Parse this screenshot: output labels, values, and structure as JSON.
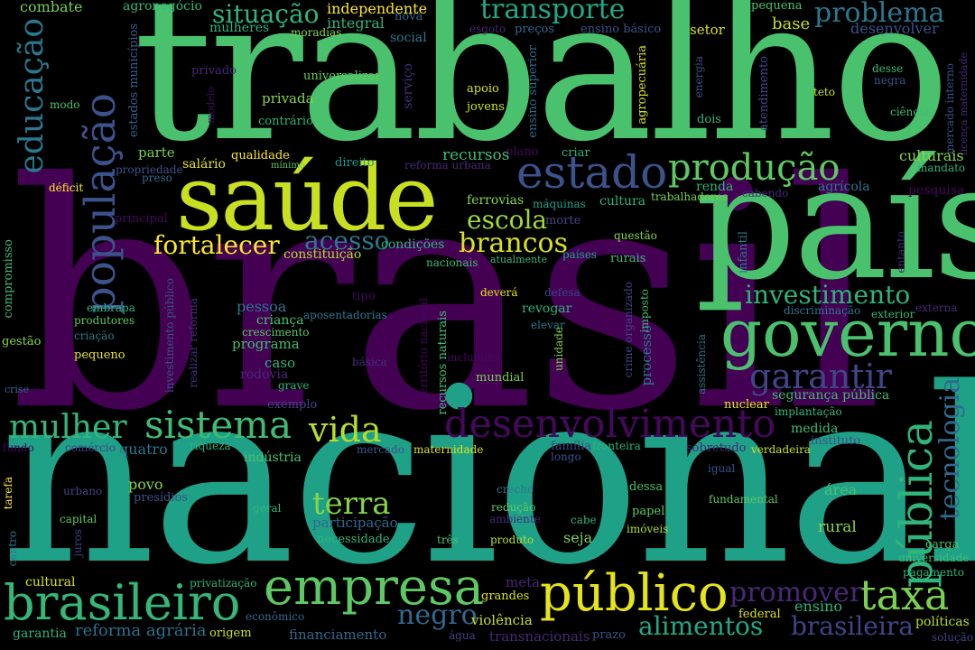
{
  "words": [
    {
      "id": "w_brasil",
      "text": "brasil",
      "color": "#440154"
    },
    {
      "id": "w_nacional",
      "text": "nacional",
      "color": "#1fa187"
    },
    {
      "id": "w_trabalho",
      "text": "trabalho",
      "color": "#4ac16d"
    },
    {
      "id": "w_pais",
      "text": "país",
      "color": "#4ac16d"
    },
    {
      "id": "w_saude",
      "text": "saúde",
      "color": "#c8e020"
    },
    {
      "id": "w_governo",
      "text": "governo",
      "color": "#4ac16d"
    },
    {
      "id": "w_estado",
      "text": "estado",
      "color": "#3b528b"
    },
    {
      "id": "w_publico",
      "text": "público",
      "color": "#e5e419"
    },
    {
      "id": "w_empresa",
      "text": "empresa",
      "color": "#5ec962"
    },
    {
      "id": "w_brasileiro",
      "text": "brasileiro",
      "color": "#35b779"
    },
    {
      "id": "w_desenvolvimento",
      "text": "desenvolvimento",
      "color": "#46085c"
    },
    {
      "id": "w_populacao",
      "text": "população",
      "color": "#3b528b"
    },
    {
      "id": "w_publica",
      "text": "pública",
      "color": "#2fb47c"
    },
    {
      "id": "w_producao",
      "text": "produção",
      "color": "#5ec962"
    },
    {
      "id": "w_sistema",
      "text": "sistema",
      "color": "#3fbc73"
    },
    {
      "id": "w_mulher",
      "text": "mulher",
      "color": "#35b779"
    },
    {
      "id": "w_educacao",
      "text": "educação",
      "color": "#2a788e"
    },
    {
      "id": "w_taxa",
      "text": "taxa",
      "color": "#7ad151"
    },
    {
      "id": "w_vida",
      "text": "vida",
      "color": "#b5de2b"
    },
    {
      "id": "w_garantir",
      "text": "garantir",
      "color": "#414487"
    },
    {
      "id": "w_promover",
      "text": "promover",
      "color": "#482878"
    },
    {
      "id": "w_negro",
      "text": "negro",
      "color": "#31688e"
    },
    {
      "id": "w_transporte",
      "text": "transporte",
      "color": "#22a884"
    },
    {
      "id": "w_situacao",
      "text": "situação",
      "color": "#2fb47c"
    },
    {
      "id": "w_problema",
      "text": "problema",
      "color": "#2a788e"
    },
    {
      "id": "w_fortalecer",
      "text": "fortalecer",
      "color": "#fde725"
    },
    {
      "id": "w_brancos",
      "text": "brancos",
      "color": "#d8e219"
    },
    {
      "id": "w_escola",
      "text": "escola",
      "color": "#a0da39"
    },
    {
      "id": "w_acesso",
      "text": "acesso",
      "color": "#2a788e"
    },
    {
      "id": "w_investimento",
      "text": "investimento",
      "color": "#2fb47c"
    },
    {
      "id": "w_tecnologia",
      "text": "tecnologia",
      "color": "#31688e"
    },
    {
      "id": "w_terra",
      "text": "terra",
      "color": "#86d549"
    },
    {
      "id": "w_alimentos",
      "text": "alimentos",
      "color": "#22a884"
    },
    {
      "id": "w_brasileira",
      "text": "brasileira",
      "color": "#414487"
    },
    {
      "id": "w_reforma_agraria",
      "text": "reforma agrária",
      "color": "#2c728e"
    },
    {
      "id": "w_combate",
      "text": "combate",
      "color": "#75d054"
    },
    {
      "id": "w_agronegocio",
      "text": "agronegócio",
      "color": "#35b779"
    },
    {
      "id": "w_independente",
      "text": "independente",
      "color": "#fde725"
    },
    {
      "id": "w_integral",
      "text": "integral",
      "color": "#2fb47c"
    },
    {
      "id": "w_nova",
      "text": "nova",
      "color": "#31688e"
    },
    {
      "id": "w_pequena",
      "text": "pequena",
      "color": "#4ac16d"
    },
    {
      "id": "w_base",
      "text": "base",
      "color": "#c8e020"
    },
    {
      "id": "w_desenvolver",
      "text": "desenvolver",
      "color": "#3b528b"
    },
    {
      "id": "w_setor",
      "text": "setor",
      "color": "#d8e219"
    },
    {
      "id": "w_mulheres",
      "text": "mulheres",
      "color": "#2fb47c"
    },
    {
      "id": "w_moradias",
      "text": "moradias",
      "color": "#86d549"
    },
    {
      "id": "w_esgoto",
      "text": "esgoto",
      "color": "#482878"
    },
    {
      "id": "w_precos",
      "text": "preços",
      "color": "#31688e"
    },
    {
      "id": "w_ensino_basico",
      "text": "ensino básico",
      "color": "#3b528b"
    },
    {
      "id": "w_social",
      "text": "social",
      "color": "#2a788e"
    },
    {
      "id": "w_estados_municipios",
      "text": "estados municípios",
      "color": "#35608d"
    },
    {
      "id": "w_universalizar",
      "text": "universalizar",
      "color": "#65cb5e"
    },
    {
      "id": "w_privado",
      "text": "privado",
      "color": "#482878"
    },
    {
      "id": "w_servico",
      "text": "serviço",
      "color": "#472f7d"
    },
    {
      "id": "w_ensino_superior",
      "text": "ensino superior",
      "color": "#31688e"
    },
    {
      "id": "w_agropecuaria",
      "text": "agropecuária",
      "color": "#d8e219"
    },
    {
      "id": "w_energia",
      "text": "energia",
      "color": "#3b528b"
    },
    {
      "id": "w_atendimento",
      "text": "atendimento",
      "color": "#414487"
    },
    {
      "id": "w_desse",
      "text": "desse",
      "color": "#3fbc73"
    },
    {
      "id": "w_negra",
      "text": "negra",
      "color": "#3b528b"
    },
    {
      "id": "w_mercado_interno",
      "text": "mercado interno",
      "color": "#3b528b"
    },
    {
      "id": "w_licenca_maternidade",
      "text": "licença maternidade",
      "color": "#482878"
    },
    {
      "id": "w_modo",
      "text": "modo",
      "color": "#4ac16d"
    },
    {
      "id": "w_modelo",
      "text": "modelo",
      "color": "#46085c"
    },
    {
      "id": "w_apoio",
      "text": "apoio",
      "color": "#d8e219"
    },
    {
      "id": "w_jovens",
      "text": "jovens",
      "color": "#c8e020"
    },
    {
      "id": "w_teto",
      "text": "teto",
      "color": "#c8e020"
    },
    {
      "id": "w_dois",
      "text": "dois",
      "color": "#2fb47c"
    },
    {
      "id": "w_ciencia",
      "text": "ciência",
      "color": "#3fbc73"
    },
    {
      "id": "w_privada",
      "text": "privada",
      "color": "#86d549"
    },
    {
      "id": "w_contrario",
      "text": "contrário",
      "color": "#2fb47c"
    },
    {
      "id": "w_plano",
      "text": "plano",
      "color": "#46085c"
    },
    {
      "id": "w_criar",
      "text": "criar",
      "color": "#2fb47c"
    },
    {
      "id": "w_parte",
      "text": "parte",
      "color": "#7ad151"
    },
    {
      "id": "w_recursos",
      "text": "recursos",
      "color": "#3fbc73"
    },
    {
      "id": "w_qualidade",
      "text": "qualidade",
      "color": "#fde725"
    },
    {
      "id": "w_salario",
      "text": "salário",
      "color": "#e5e419"
    },
    {
      "id": "w_minimo",
      "text": "mínimo",
      "color": "#5ec962"
    },
    {
      "id": "w_direito",
      "text": "direito",
      "color": "#1f9a8a"
    },
    {
      "id": "w_reforma_urbana",
      "text": "reforma urbana",
      "color": "#482878"
    },
    {
      "id": "w_culturais",
      "text": "culturais",
      "color": "#86d549"
    },
    {
      "id": "w_mandato",
      "text": "mandato",
      "color": "#2fb47c"
    },
    {
      "id": "w_propriedade",
      "text": "propriedade",
      "color": "#3b528b"
    },
    {
      "id": "w_preso",
      "text": "preso",
      "color": "#31688e"
    },
    {
      "id": "w_deficit",
      "text": "déficit",
      "color": "#fde725"
    },
    {
      "id": "w_renda",
      "text": "renda",
      "color": "#2fb47c"
    },
    {
      "id": "w_agricola",
      "text": "agrícola",
      "color": "#2a788e"
    },
    {
      "id": "w_cabendo",
      "text": "cabendo",
      "color": "#482878"
    },
    {
      "id": "w_pesquisa",
      "text": "pesquisa",
      "color": "#46085c"
    },
    {
      "id": "w_ferrovias",
      "text": "ferrovias",
      "color": "#86d549"
    },
    {
      "id": "w_maquinas",
      "text": "máquinas",
      "color": "#1fa187"
    },
    {
      "id": "w_cultura",
      "text": "cultura",
      "color": "#2fb47c"
    },
    {
      "id": "w_trabalhadores",
      "text": "trabalhadores",
      "color": "#7ad151"
    },
    {
      "id": "w_principal",
      "text": "principal",
      "color": "#46085c"
    },
    {
      "id": "w_morte",
      "text": "morte",
      "color": "#414487"
    },
    {
      "id": "w_infantil",
      "text": "infantil",
      "color": "#2a788e"
    },
    {
      "id": "w_entanto",
      "text": "entanto",
      "color": "#482878"
    },
    {
      "id": "w_condicoes",
      "text": "condições",
      "color": "#2fb47c"
    },
    {
      "id": "w_constituicao",
      "text": "constituição",
      "color": "#b5de2b"
    },
    {
      "id": "w_questao",
      "text": "questão",
      "color": "#86d549"
    },
    {
      "id": "w_paises",
      "text": "países",
      "color": "#1fa187"
    },
    {
      "id": "w_rurais",
      "text": "rurais",
      "color": "#3fbc73"
    },
    {
      "id": "w_compromisso",
      "text": "compromisso",
      "color": "#3fbc73"
    },
    {
      "id": "w_nacionais",
      "text": "nacionais",
      "color": "#3fbc73"
    },
    {
      "id": "w_atualmente",
      "text": "atualmente",
      "color": "#35b779"
    },
    {
      "id": "w_tipo",
      "text": "tipo",
      "color": "#46085c"
    },
    {
      "id": "w_devera",
      "text": "deverá",
      "color": "#e5e419"
    },
    {
      "id": "w_defesa",
      "text": "defesa",
      "color": "#414487"
    },
    {
      "id": "w_crime_organizado",
      "text": "crime organizado",
      "color": "#414487"
    },
    {
      "id": "w_imposto",
      "text": "imposto",
      "color": "#3fbc73"
    },
    {
      "id": "w_embrapa",
      "text": "embrapa",
      "color": "#2fb47c"
    },
    {
      "id": "w_produtores",
      "text": "produtores",
      "color": "#5ec962"
    },
    {
      "id": "w_investimento_publico",
      "text": "investimento público",
      "color": "#3b528b"
    },
    {
      "id": "w_realizar_reforma",
      "text": "realizar reforma",
      "color": "#472f7d"
    },
    {
      "id": "w_pessoa",
      "text": "pessoa",
      "color": "#2a788e"
    },
    {
      "id": "w_crianca",
      "text": "criança",
      "color": "#4ac16d"
    },
    {
      "id": "w_aposentadorias",
      "text": "aposentadorias",
      "color": "#2a788e"
    },
    {
      "id": "w_territorio_nacional",
      "text": "território nacional",
      "color": "#46085c"
    },
    {
      "id": "w_revogar",
      "text": "revogar",
      "color": "#2fb47c"
    },
    {
      "id": "w_elevar",
      "text": "elevar",
      "color": "#2a788e"
    },
    {
      "id": "w_discriminacao",
      "text": "discriminação",
      "color": "#2a788e"
    },
    {
      "id": "w_exterior",
      "text": "exterior",
      "color": "#35b779"
    },
    {
      "id": "w_externa",
      "text": "externa",
      "color": "#482878"
    },
    {
      "id": "w_gestao",
      "text": "gestão",
      "color": "#86d549"
    },
    {
      "id": "w_criacao",
      "text": "criação",
      "color": "#2a788e"
    },
    {
      "id": "w_crescimento",
      "text": "crescimento",
      "color": "#5ec962"
    },
    {
      "id": "w_programa",
      "text": "programa",
      "color": "#3fbc73"
    },
    {
      "id": "w_recursos_naturais",
      "text": "recursos naturais",
      "color": "#3fbc73"
    },
    {
      "id": "w_unidade",
      "text": "unidade",
      "color": "#86d549"
    },
    {
      "id": "w_processo",
      "text": "processo",
      "color": "#2a788e"
    },
    {
      "id": "w_assistencia",
      "text": "assistência",
      "color": "#2c728e"
    },
    {
      "id": "w_pequeno",
      "text": "pequeno",
      "color": "#e5e419"
    },
    {
      "id": "w_rodovia",
      "text": "rodovia",
      "color": "#482878"
    },
    {
      "id": "w_caso",
      "text": "caso",
      "color": "#2fb47c"
    },
    {
      "id": "w_basica",
      "text": "básica",
      "color": "#472f7d"
    },
    {
      "id": "w_incluindo",
      "text": "incluindo",
      "color": "#46085c"
    },
    {
      "id": "w_crise",
      "text": "crise",
      "color": "#31688e"
    },
    {
      "id": "w_grave",
      "text": "grave",
      "color": "#2fb47c"
    },
    {
      "id": "w_mundial",
      "text": "mundial",
      "color": "#7ad151"
    },
    {
      "id": "w_exemplo",
      "text": "exemplo",
      "color": "#414487"
    },
    {
      "id": "w_nuclear",
      "text": "nuclear",
      "color": "#e5e419"
    },
    {
      "id": "w_seguranca_publica",
      "text": "segurança pública",
      "color": "#3fbc73"
    },
    {
      "id": "w_implantacao",
      "text": "implantação",
      "color": "#35b779"
    },
    {
      "id": "w_medida",
      "text": "medida",
      "color": "#3fbc73"
    },
    {
      "id": "w_instituto",
      "text": "instituto",
      "color": "#3b528b"
    },
    {
      "id": "w_fundo",
      "text": "fundo",
      "color": "#46085c"
    },
    {
      "id": "w_comercio",
      "text": "comércio",
      "color": "#414487"
    },
    {
      "id": "w_quatro",
      "text": "quatro",
      "color": "#2a788e"
    },
    {
      "id": "w_riqueza",
      "text": "riqueza",
      "color": "#2fb47c"
    },
    {
      "id": "w_mercado",
      "text": "mercado",
      "color": "#3b528b"
    },
    {
      "id": "w_maternidade",
      "text": "maternidade",
      "color": "#d8e219"
    },
    {
      "id": "w_familia",
      "text": "família",
      "color": "#414487"
    },
    {
      "id": "w_fronteira",
      "text": "fronteira",
      "color": "#2fb47c"
    },
    {
      "id": "w_longo",
      "text": "longo",
      "color": "#3b528b"
    },
    {
      "id": "w_sobretudo",
      "text": "sobretudo",
      "color": "#482878"
    },
    {
      "id": "w_verdadeira",
      "text": "verdadeira",
      "color": "#c8e020"
    },
    {
      "id": "w_industria",
      "text": "indústria",
      "color": "#4ac16d"
    },
    {
      "id": "w_igual",
      "text": "igual",
      "color": "#3b528b"
    },
    {
      "id": "w_tarefa",
      "text": "tarefa",
      "color": "#fde725"
    },
    {
      "id": "w_povo",
      "text": "povo",
      "color": "#86d549"
    },
    {
      "id": "w_presidios",
      "text": "presídios",
      "color": "#3b528b"
    },
    {
      "id": "w_dessa",
      "text": "dessa",
      "color": "#4ac16d"
    },
    {
      "id": "w_fundamental",
      "text": "fundamental",
      "color": "#5ec962"
    },
    {
      "id": "w_area",
      "text": "área",
      "color": "#4ac16d"
    },
    {
      "id": "w_urbano",
      "text": "urbano",
      "color": "#414487"
    },
    {
      "id": "w_creche",
      "text": "creche",
      "color": "#2a788e"
    },
    {
      "id": "w_papel",
      "text": "papel",
      "color": "#5ec962"
    },
    {
      "id": "w_geral",
      "text": "geral",
      "color": "#2fb47c"
    },
    {
      "id": "w_participacao",
      "text": "participação",
      "color": "#31688e"
    },
    {
      "id": "w_reducao",
      "text": "redução",
      "color": "#5ec962"
    },
    {
      "id": "w_ambiente",
      "text": "ambiente",
      "color": "#482878"
    },
    {
      "id": "w_cabe",
      "text": "cabe",
      "color": "#2fb47c"
    },
    {
      "id": "w_imoveis",
      "text": "imóveis",
      "color": "#b5de2b"
    },
    {
      "id": "w_capital",
      "text": "capital",
      "color": "#5ec962"
    },
    {
      "id": "w_necessidade",
      "text": "necessidade",
      "color": "#2fb47c"
    },
    {
      "id": "w_seja",
      "text": "seja",
      "color": "#7ad151"
    },
    {
      "id": "w_rural",
      "text": "rural",
      "color": "#86d549"
    },
    {
      "id": "w_centro",
      "text": "centro",
      "color": "#2a788e"
    },
    {
      "id": "w_juros",
      "text": "juros",
      "color": "#414487"
    },
    {
      "id": "w_tres",
      "text": "três",
      "color": "#4ac16d"
    },
    {
      "id": "w_produto",
      "text": "produto",
      "color": "#b5de2b"
    },
    {
      "id": "w_carga",
      "text": "carga",
      "color": "#4ac16d"
    },
    {
      "id": "w_universidade",
      "text": "universidade",
      "color": "#3fbc73"
    },
    {
      "id": "w_pagamento",
      "text": "pagamento",
      "color": "#2fb47c"
    },
    {
      "id": "w_cultural",
      "text": "cultural",
      "color": "#d8e219"
    },
    {
      "id": "w_privatizacao",
      "text": "privatização",
      "color": "#2fb47c"
    },
    {
      "id": "w_meta",
      "text": "meta",
      "color": "#482878"
    },
    {
      "id": "w_grandes",
      "text": "grandes",
      "color": "#d8e219"
    },
    {
      "id": "w_ensino",
      "text": "ensino",
      "color": "#2fb47c"
    },
    {
      "id": "w_politicas",
      "text": "políticas",
      "color": "#b5de2b"
    },
    {
      "id": "w_economico",
      "text": "econômico",
      "color": "#31688e"
    },
    {
      "id": "w_violencia",
      "text": "violência",
      "color": "#c8e020"
    },
    {
      "id": "w_federal",
      "text": "federal",
      "color": "#d8e219"
    },
    {
      "id": "w_garantia",
      "text": "garantia",
      "color": "#2fb47c"
    },
    {
      "id": "w_origem",
      "text": "origem",
      "color": "#c8e020"
    },
    {
      "id": "w_financiamento",
      "text": "financiamento",
      "color": "#31688e"
    },
    {
      "id": "w_agua",
      "text": "água",
      "color": "#414487"
    },
    {
      "id": "w_transnacionais",
      "text": "transnacionais",
      "color": "#482878"
    },
    {
      "id": "w_prazo",
      "text": "prazo",
      "color": "#3b528b"
    },
    {
      "id": "w_solucao",
      "text": "solução",
      "color": "#414487"
    }
  ]
}
